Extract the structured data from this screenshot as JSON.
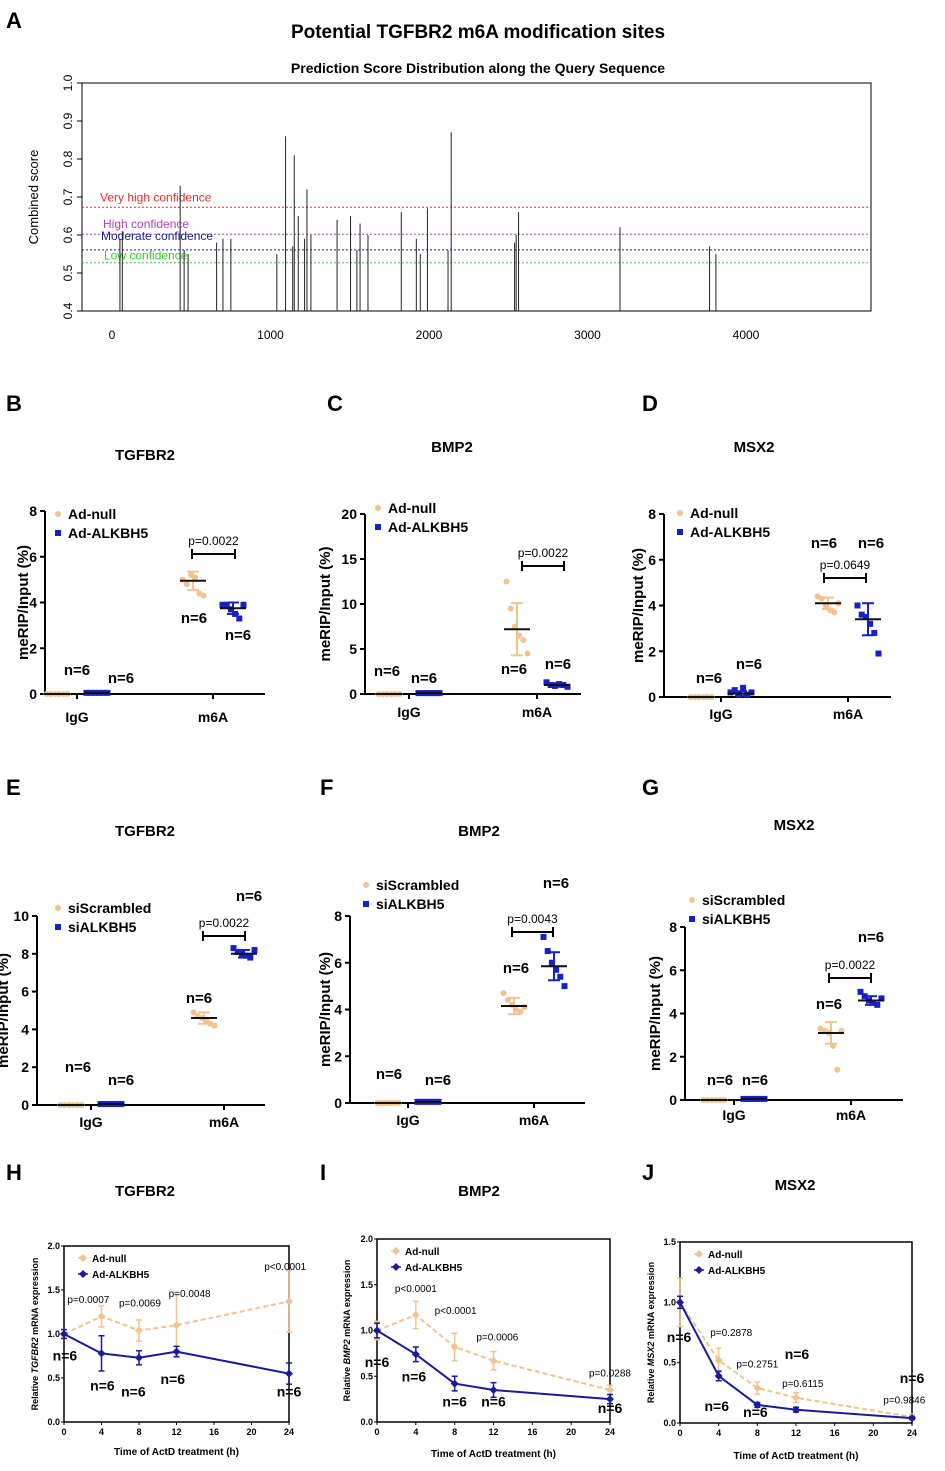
{
  "colors": {
    "peach": "#F2C38E",
    "blue": "#1620C8",
    "navy": "#1a1a9a",
    "black": "#000000",
    "red": "#E03030",
    "purple": "#B040C0",
    "darkblue": "#202090",
    "green": "#30D030"
  },
  "labels": {
    "n": "n=6"
  },
  "chart_data": [
    {
      "panel": "A",
      "type": "bar",
      "title": "Potential TGFBR2 m6A modification sites",
      "subtitle": "Prediction Score Distribution along the Query Sequence",
      "ylabel": "Combined score",
      "xlim": [
        -100,
        4800
      ],
      "ylim": [
        0.4,
        1.0
      ],
      "xticks": [
        "0",
        "1000",
        "2000",
        "3000",
        "4000"
      ],
      "yticks": [
        "0.4",
        "0.5",
        "0.6",
        "0.7",
        "0.8",
        "0.9",
        "1.0"
      ],
      "thresholds": [
        {
          "label": "Very high confidence",
          "value": 0.673,
          "color": "red"
        },
        {
          "label": "High confidence",
          "value": 0.602,
          "color": "purple"
        },
        {
          "label": "Moderate confidence",
          "value": 0.561,
          "color": "darkblue"
        },
        {
          "label": "Low confidence",
          "value": 0.527,
          "color": "green"
        }
      ],
      "sites": [
        [
          50,
          0.59
        ],
        [
          65,
          0.61
        ],
        [
          430,
          0.73
        ],
        [
          455,
          0.56
        ],
        [
          480,
          0.55
        ],
        [
          660,
          0.58
        ],
        [
          700,
          0.59
        ],
        [
          750,
          0.59
        ],
        [
          1040,
          0.55
        ],
        [
          1095,
          0.86
        ],
        [
          1140,
          0.57
        ],
        [
          1150,
          0.81
        ],
        [
          1175,
          0.65
        ],
        [
          1215,
          0.59
        ],
        [
          1230,
          0.72
        ],
        [
          1255,
          0.6
        ],
        [
          1420,
          0.64
        ],
        [
          1505,
          0.65
        ],
        [
          1545,
          0.56
        ],
        [
          1565,
          0.63
        ],
        [
          1615,
          0.6
        ],
        [
          1825,
          0.66
        ],
        [
          1920,
          0.59
        ],
        [
          1945,
          0.55
        ],
        [
          1990,
          0.67
        ],
        [
          2120,
          0.56
        ],
        [
          2140,
          0.87
        ],
        [
          2540,
          0.58
        ],
        [
          2550,
          0.6
        ],
        [
          2565,
          0.66
        ],
        [
          3205,
          0.62
        ],
        [
          3770,
          0.57
        ],
        [
          3810,
          0.55
        ]
      ]
    },
    {
      "panel": "B",
      "type": "scatter",
      "title": "TGFBR2",
      "ylabel": "meRIP/Input (%)",
      "categories": [
        "IgG",
        "m6A"
      ],
      "ylim": [
        0,
        8
      ],
      "yticks": [
        "0",
        "2",
        "4",
        "6",
        "8"
      ],
      "legend": [
        "Ad-null",
        "Ad-ALKBH5"
      ],
      "series": [
        {
          "name": "Ad-null",
          "color": "peach",
          "IgG": {
            "points": [
              0,
              0,
              0,
              0,
              0,
              0
            ],
            "mean": 0,
            "err": 0
          },
          "m6A": {
            "points": [
              5.0,
              4.8,
              5.2,
              5.1,
              4.4,
              4.3
            ],
            "mean": 4.95,
            "err": 0.4
          }
        },
        {
          "name": "Ad-ALKBH5",
          "color": "blue",
          "IgG": {
            "points": [
              0.05,
              0.05,
              0.05,
              0.05,
              0.05,
              0.05
            ],
            "mean": 0.05,
            "err": 0
          },
          "m6A": {
            "points": [
              3.9,
              3.9,
              3.7,
              3.5,
              3.3,
              3.9
            ],
            "mean": 3.75,
            "err": 0.25
          }
        }
      ],
      "annotations": {
        "p_value": "p=0.0022",
        "n": [
          "n=6",
          "n=6",
          "n=6",
          "n=6"
        ]
      }
    },
    {
      "panel": "C",
      "type": "scatter",
      "title": "BMP2",
      "ylabel": "meRIP/Input (%)",
      "categories": [
        "IgG",
        "m6A"
      ],
      "ylim": [
        0,
        20
      ],
      "yticks": [
        "0",
        "5",
        "10",
        "15",
        "20"
      ],
      "legend": [
        "Ad-null",
        "Ad-ALKBH5"
      ],
      "series": [
        {
          "name": "Ad-null",
          "color": "peach",
          "IgG": {
            "points": [
              0,
              0,
              0,
              0,
              0,
              0
            ],
            "mean": 0,
            "err": 0
          },
          "m6A": {
            "points": [
              12.5,
              9.5,
              7.5,
              6.5,
              6.0,
              4.5
            ],
            "mean": 7.2,
            "err": 2.9
          }
        },
        {
          "name": "Ad-ALKBH5",
          "color": "blue",
          "IgG": {
            "points": [
              0.1,
              0.1,
              0.1,
              0.1,
              0.1,
              0.1
            ],
            "mean": 0.1,
            "err": 0
          },
          "m6A": {
            "points": [
              1.3,
              1.0,
              0.9,
              1.1,
              1.0,
              0.8
            ],
            "mean": 1.0,
            "err": 0.2
          }
        }
      ],
      "annotations": {
        "p_value": "p=0.0022",
        "n": [
          "n=6",
          "n=6",
          "n=6",
          "n=6"
        ]
      }
    },
    {
      "panel": "D",
      "type": "scatter",
      "title": "MSX2",
      "ylabel": "meRIP/Input (%)",
      "categories": [
        "IgG",
        "m6A"
      ],
      "ylim": [
        0,
        8
      ],
      "yticks": [
        "0",
        "2",
        "4",
        "6",
        "8"
      ],
      "legend": [
        "Ad-null",
        "Ad-ALKBH5"
      ],
      "series": [
        {
          "name": "Ad-null",
          "color": "peach",
          "IgG": {
            "points": [
              0,
              0,
              0,
              0,
              0,
              0
            ],
            "mean": 0,
            "err": 0
          },
          "m6A": {
            "points": [
              4.4,
              4.3,
              4.0,
              3.8,
              3.7,
              4.1
            ],
            "mean": 4.1,
            "err": 0.25
          }
        },
        {
          "name": "Ad-ALKBH5",
          "color": "blue",
          "IgG": {
            "points": [
              0.2,
              0.3,
              0.1,
              0.4,
              0.1,
              0.2
            ],
            "mean": 0.15,
            "err": 0.1
          },
          "m6A": {
            "points": [
              4.0,
              3.6,
              3.5,
              3.2,
              2.8,
              1.9
            ],
            "mean": 3.4,
            "err": 0.7
          }
        }
      ],
      "annotations": {
        "p_value": "p=0.0649",
        "n": [
          "n=6",
          "n=6",
          "n=6",
          "n=6"
        ]
      }
    },
    {
      "panel": "E",
      "type": "scatter",
      "title": "TGFBR2",
      "ylabel": "meRIP/Input (%)",
      "categories": [
        "IgG",
        "m6A"
      ],
      "ylim": [
        0,
        10
      ],
      "yticks": [
        "0",
        "2",
        "4",
        "6",
        "8",
        "10"
      ],
      "legend": [
        "siScrambled",
        "siALKBH5"
      ],
      "series": [
        {
          "name": "siScrambled",
          "color": "peach",
          "IgG": {
            "points": [
              0,
              0,
              0,
              0,
              0,
              0
            ],
            "mean": 0,
            "err": 0
          },
          "m6A": {
            "points": [
              4.9,
              4.7,
              4.6,
              4.5,
              4.3,
              4.2
            ],
            "mean": 4.6,
            "err": 0.3
          }
        },
        {
          "name": "siALKBH5",
          "color": "blue",
          "IgG": {
            "points": [
              0.05,
              0.05,
              0.05,
              0.05,
              0.05,
              0.05
            ],
            "mean": 0.05,
            "err": 0
          },
          "m6A": {
            "points": [
              8.3,
              8.1,
              8.0,
              7.9,
              7.8,
              8.2
            ],
            "mean": 8.0,
            "err": 0.2
          }
        }
      ],
      "annotations": {
        "p_value": "p=0.0022",
        "n": [
          "n=6",
          "n=6",
          "n=6",
          "n=6"
        ]
      }
    },
    {
      "panel": "F",
      "type": "scatter",
      "title": "BMP2",
      "ylabel": "meRIP/Input (%)",
      "categories": [
        "IgG",
        "m6A"
      ],
      "ylim": [
        0,
        8
      ],
      "yticks": [
        "0",
        "2",
        "4",
        "6",
        "8"
      ],
      "legend": [
        "siScrambled",
        "siALKBH5"
      ],
      "series": [
        {
          "name": "siScrambled",
          "color": "peach",
          "IgG": {
            "points": [
              0,
              0,
              0,
              0,
              0,
              0
            ],
            "mean": 0,
            "err": 0
          },
          "m6A": {
            "points": [
              4.7,
              4.4,
              4.2,
              4.0,
              3.9,
              4.1
            ],
            "mean": 4.15,
            "err": 0.35
          }
        },
        {
          "name": "siALKBH5",
          "color": "blue",
          "IgG": {
            "points": [
              0.05,
              0.05,
              0.05,
              0.05,
              0.05,
              0.05
            ],
            "mean": 0.05,
            "err": 0
          },
          "m6A": {
            "points": [
              7.1,
              6.5,
              6.0,
              5.7,
              5.4,
              5.0
            ],
            "mean": 5.85,
            "err": 0.6
          }
        }
      ],
      "annotations": {
        "p_value": "p=0.0043",
        "n": [
          "n=6",
          "n=6",
          "n=6",
          "n=6"
        ]
      }
    },
    {
      "panel": "G",
      "type": "scatter",
      "title": "MSX2",
      "ylabel": "meRIP/Input (%)",
      "categories": [
        "IgG",
        "m6A"
      ],
      "ylim": [
        0,
        8
      ],
      "yticks": [
        "0",
        "2",
        "4",
        "6",
        "8"
      ],
      "legend": [
        "siScrambled",
        "siALKBH5"
      ],
      "series": [
        {
          "name": "siScrambled",
          "color": "peach",
          "IgG": {
            "points": [
              0,
              0,
              0,
              0,
              0,
              0
            ],
            "mean": 0,
            "err": 0
          },
          "m6A": {
            "points": [
              3.3,
              3.2,
              3.1,
              2.5,
              1.4,
              3.2
            ],
            "mean": 3.1,
            "err": 0.5
          }
        },
        {
          "name": "siALKBH5",
          "color": "blue",
          "IgG": {
            "points": [
              0.05,
              0.05,
              0.05,
              0.05,
              0.05,
              0.05
            ],
            "mean": 0.05,
            "err": 0
          },
          "m6A": {
            "points": [
              5.0,
              4.8,
              4.6,
              4.5,
              4.4,
              4.7
            ],
            "mean": 4.6,
            "err": 0.2
          }
        }
      ],
      "annotations": {
        "p_value": "p=0.0022",
        "n": [
          "n=6",
          "n=6",
          "n=6",
          "n=6"
        ]
      }
    },
    {
      "panel": "H",
      "type": "line",
      "title": "TGFBR2",
      "ylabel_parts": [
        "Relative ",
        "TGFBR2",
        " mRNA expression"
      ],
      "xlabel": "Time of ActD treatment (h)",
      "x": [
        0,
        4,
        8,
        12,
        24
      ],
      "xlim": [
        0,
        24
      ],
      "ylim": [
        0,
        2.0
      ],
      "xticks": [
        "0",
        "4",
        "8",
        "12",
        "16",
        "20",
        "24"
      ],
      "yticks": [
        "0.0",
        "0.5",
        "1.0",
        "1.5",
        "2.0"
      ],
      "legend": [
        "Ad-null",
        "Ad-ALKBH5"
      ],
      "series": [
        {
          "name": "Ad-null",
          "color": "peach",
          "dashed": true,
          "values": [
            1.0,
            1.2,
            1.04,
            1.1,
            1.37
          ],
          "err": [
            0.05,
            0.12,
            0.12,
            0.35,
            0.35
          ]
        },
        {
          "name": "Ad-ALKBH5",
          "color": "navy",
          "dashed": false,
          "values": [
            1.0,
            0.78,
            0.73,
            0.8,
            0.55
          ],
          "err": [
            0.05,
            0.2,
            0.08,
            0.06,
            0.12
          ]
        }
      ],
      "p_values": [
        {
          "x": 2.6,
          "y": 1.35,
          "text": "p=0.0007"
        },
        {
          "x": 8.1,
          "y": 1.31,
          "text": "p=0.0069"
        },
        {
          "x": 13.4,
          "y": 1.42,
          "text": "p=0.0048"
        },
        {
          "x": 23.6,
          "y": 1.73,
          "text": "p<0.0001"
        }
      ],
      "n_labels": [
        {
          "x": 0.1,
          "y": 0.7,
          "text": "n=6"
        },
        {
          "x": 4.1,
          "y": 0.36,
          "text": "n=6"
        },
        {
          "x": 7.4,
          "y": 0.29,
          "text": "n=6"
        },
        {
          "x": 11.6,
          "y": 0.43,
          "text": "n=6"
        },
        {
          "x": 24.0,
          "y": 0.29,
          "text": "n=6"
        }
      ]
    },
    {
      "panel": "I",
      "type": "line",
      "title": "BMP2",
      "ylabel_parts": [
        "Relative ",
        "BMP2",
        " mRNA expression"
      ],
      "xlabel": "Time of ActD treatment (h)",
      "x": [
        0,
        4,
        8,
        12,
        24
      ],
      "xlim": [
        0,
        24
      ],
      "ylim": [
        0,
        2.0
      ],
      "xticks": [
        "0",
        "4",
        "8",
        "12",
        "16",
        "20",
        "24"
      ],
      "yticks": [
        "0.0",
        "0.5",
        "1.0",
        "1.5",
        "2.0"
      ],
      "legend": [
        "Ad-null",
        "Ad-ALKBH5"
      ],
      "series": [
        {
          "name": "Ad-null",
          "color": "peach",
          "dashed": true,
          "values": [
            1.0,
            1.17,
            0.82,
            0.67,
            0.35
          ],
          "err": [
            0.1,
            0.15,
            0.15,
            0.1,
            0.05
          ]
        },
        {
          "name": "Ad-ALKBH5",
          "color": "navy",
          "dashed": false,
          "values": [
            1.0,
            0.74,
            0.42,
            0.35,
            0.25
          ],
          "err": [
            0.08,
            0.08,
            0.08,
            0.08,
            0.05
          ]
        }
      ],
      "p_values": [
        {
          "x": 4.0,
          "y": 1.42,
          "text": "p<0.0001"
        },
        {
          "x": 8.1,
          "y": 1.18,
          "text": "p<0.0001"
        },
        {
          "x": 12.4,
          "y": 0.89,
          "text": "p=0.0006"
        },
        {
          "x": 24.0,
          "y": 0.5,
          "text": "p=0.0288"
        }
      ],
      "n_labels": [
        {
          "x": 0.0,
          "y": 0.6,
          "text": "n=6"
        },
        {
          "x": 3.8,
          "y": 0.44,
          "text": "n=6"
        },
        {
          "x": 8.0,
          "y": 0.17,
          "text": "n=6"
        },
        {
          "x": 12.0,
          "y": 0.17,
          "text": "n=6"
        },
        {
          "x": 24.0,
          "y": 0.1,
          "text": "n=6"
        }
      ]
    },
    {
      "panel": "J",
      "type": "line",
      "title": "MSX2",
      "ylabel_parts": [
        "Relative ",
        "MSX2",
        " mRNA expression"
      ],
      "xlabel": "Time of ActD treatment (h)",
      "x": [
        0,
        4,
        8,
        12,
        24
      ],
      "xlim": [
        0,
        24
      ],
      "ylim": [
        0,
        1.5
      ],
      "xticks": [
        "0",
        "4",
        "8",
        "12",
        "16",
        "20",
        "24"
      ],
      "yticks": [
        "0.0",
        "0.5",
        "1.0",
        "1.5"
      ],
      "legend": [
        "Ad-null",
        "Ad-ALKBH5"
      ],
      "series": [
        {
          "name": "Ad-null",
          "color": "peach",
          "dashed": true,
          "values": [
            1.0,
            0.52,
            0.29,
            0.21,
            0.05
          ],
          "err": [
            0.2,
            0.1,
            0.05,
            0.04,
            0.02
          ]
        },
        {
          "name": "Ad-ALKBH5",
          "color": "navy",
          "dashed": false,
          "values": [
            1.0,
            0.39,
            0.15,
            0.11,
            0.04
          ],
          "err": [
            0.05,
            0.04,
            0.02,
            0.02,
            0.01
          ]
        }
      ],
      "p_values": [
        {
          "x": 5.3,
          "y": 0.72,
          "text": "p=0.2878"
        },
        {
          "x": 8.0,
          "y": 0.46,
          "text": "p=0.2751"
        },
        {
          "x": 12.7,
          "y": 0.3,
          "text": "p=0.6115"
        },
        {
          "x": 23.2,
          "y": 0.16,
          "text": "p=0.9846"
        }
      ],
      "n_labels": [
        {
          "x": -0.1,
          "y": 0.67,
          "text": "n=6"
        },
        {
          "x": 12.1,
          "y": 0.53,
          "text": "n=6"
        },
        {
          "x": 3.8,
          "y": 0.1,
          "text": "n=6"
        },
        {
          "x": 7.8,
          "y": 0.05,
          "text": "n=6"
        },
        {
          "x": 24.0,
          "y": 0.33,
          "text": "n=6"
        }
      ]
    }
  ]
}
